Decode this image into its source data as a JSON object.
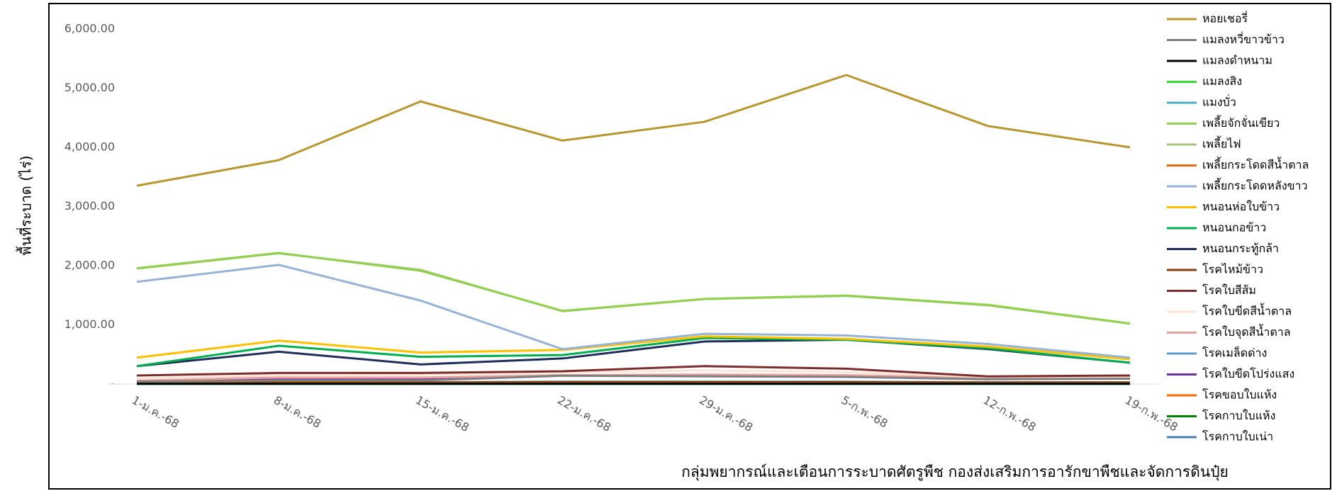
{
  "chart_data": {
    "type": "line",
    "y_label": "พื้นที่ระบาด (ไร่)",
    "footer": "กลุ่มพยากรณ์และเตือนการระบาดศัตรูพืช กองส่งเสริมการอารักขาพืชและจัดการดินปุ๋ย",
    "categories": [
      "1-ม.ค.-68",
      "8-ม.ค.-68",
      "15-ม.ค.-68",
      "22-ม.ค.-68",
      "29-ม.ค.-68",
      "5-ก.พ.-68",
      "12-ก.พ.-68",
      "19-ก.พ.-68"
    ],
    "ylim": [
      0,
      6000
    ],
    "yticks": [
      {
        "value": 0,
        "label": "-"
      },
      {
        "value": 1000,
        "label": "1,000.00"
      },
      {
        "value": 2000,
        "label": "2,000.00"
      },
      {
        "value": 3000,
        "label": "3,000.00"
      },
      {
        "value": 4000,
        "label": "4,000.00"
      },
      {
        "value": 5000,
        "label": "5,000.00"
      },
      {
        "value": 6000,
        "label": "6,000.00"
      }
    ],
    "grid": false,
    "legend": "right",
    "series": [
      {
        "name": "หอยเชอรี่",
        "color": "#b8962e",
        "values": [
          3352,
          3784,
          4777,
          4115,
          4432,
          5223,
          4360,
          4000
        ]
      },
      {
        "name": "แมลงหวี่ขาวข้าว",
        "color": "#7f7f7f",
        "values": [
          40,
          60,
          60,
          140,
          130,
          120,
          80,
          90
        ]
      },
      {
        "name": "แมลงดำหนาม",
        "color": "#000000",
        "values": [
          5,
          5,
          5,
          5,
          5,
          5,
          5,
          5
        ]
      },
      {
        "name": "แมลงสิง",
        "color": "#33dd33",
        "values": [
          3,
          3,
          3,
          3,
          3,
          3,
          3,
          3
        ]
      },
      {
        "name": "แมงบั่ว",
        "color": "#4bacc6",
        "values": [
          2,
          2,
          2,
          2,
          2,
          2,
          2,
          2
        ]
      },
      {
        "name": "เพลี้ยจักจั่นเขียว",
        "color": "#92d050",
        "values": [
          1957,
          2216,
          1914,
          1237,
          1439,
          1496,
          1338,
          1022
        ]
      },
      {
        "name": "เพลี้ยไฟ",
        "color": "#a9c47f",
        "values": [
          1950,
          2210,
          1930,
          1230,
          1435,
          1490,
          1330,
          1020
        ]
      },
      {
        "name": "เพลี้ยกระโดดสีน้ำตาล",
        "color": "#e46c0a",
        "values": [
          10,
          10,
          10,
          10,
          10,
          10,
          10,
          10
        ]
      },
      {
        "name": "เพลี้ยกระโดดหลังขาว",
        "color": "#95b3d7",
        "values": [
          1727,
          2014,
          1410,
          590,
          849,
          820,
          676,
          446
        ]
      },
      {
        "name": "หนอนห่อใบข้าว",
        "color": "#ffc000",
        "values": [
          446,
          734,
          532,
          576,
          806,
          763,
          633,
          417
        ]
      },
      {
        "name": "หนอนกอข้าว",
        "color": "#00b050",
        "values": [
          302,
          647,
          460,
          489,
          777,
          748,
          604,
          360
        ]
      },
      {
        "name": "หนอนกระทู้กล้า",
        "color": "#1f2d5a",
        "values": [
          302,
          547,
          331,
          432,
          719,
          748,
          590,
          360
        ]
      },
      {
        "name": "โรคไหม้ข้าว",
        "color": "#843c0c",
        "values": [
          20,
          25,
          25,
          30,
          30,
          30,
          25,
          25
        ]
      },
      {
        "name": "โรคใบสีส้ม",
        "color": "#7b2c2c",
        "values": [
          144,
          187,
          187,
          216,
          302,
          259,
          129,
          144
        ]
      },
      {
        "name": "โรคใบขีดสีน้ำตาล",
        "color": "#fce4d6",
        "values": [
          90,
          150,
          160,
          200,
          230,
          200,
          120,
          110
        ]
      },
      {
        "name": "โรคใบจุดสีน้ำตาล",
        "color": "#e6a0a0",
        "values": [
          60,
          110,
          110,
          150,
          160,
          150,
          100,
          100
        ]
      },
      {
        "name": "โรคเมล็ดด่าง",
        "color": "#5b9bd5",
        "values": [
          20,
          30,
          30,
          40,
          40,
          40,
          30,
          30
        ]
      },
      {
        "name": "โรคใบขีดโปร่งแสง",
        "color": "#7030a0",
        "values": [
          30,
          80,
          90,
          150,
          150,
          140,
          90,
          100
        ]
      },
      {
        "name": "โรคขอบใบแห้ง",
        "color": "#ff6a00",
        "values": [
          4,
          4,
          4,
          4,
          4,
          4,
          4,
          4
        ]
      },
      {
        "name": "โรคกาบใบแห้ง",
        "color": "#008000",
        "values": [
          8,
          8,
          8,
          8,
          8,
          8,
          8,
          8
        ]
      },
      {
        "name": "โรคกาบใบเน่า",
        "color": "#4a7eb0",
        "values": [
          1,
          1,
          1,
          1,
          1,
          1,
          1,
          1
        ]
      }
    ]
  }
}
